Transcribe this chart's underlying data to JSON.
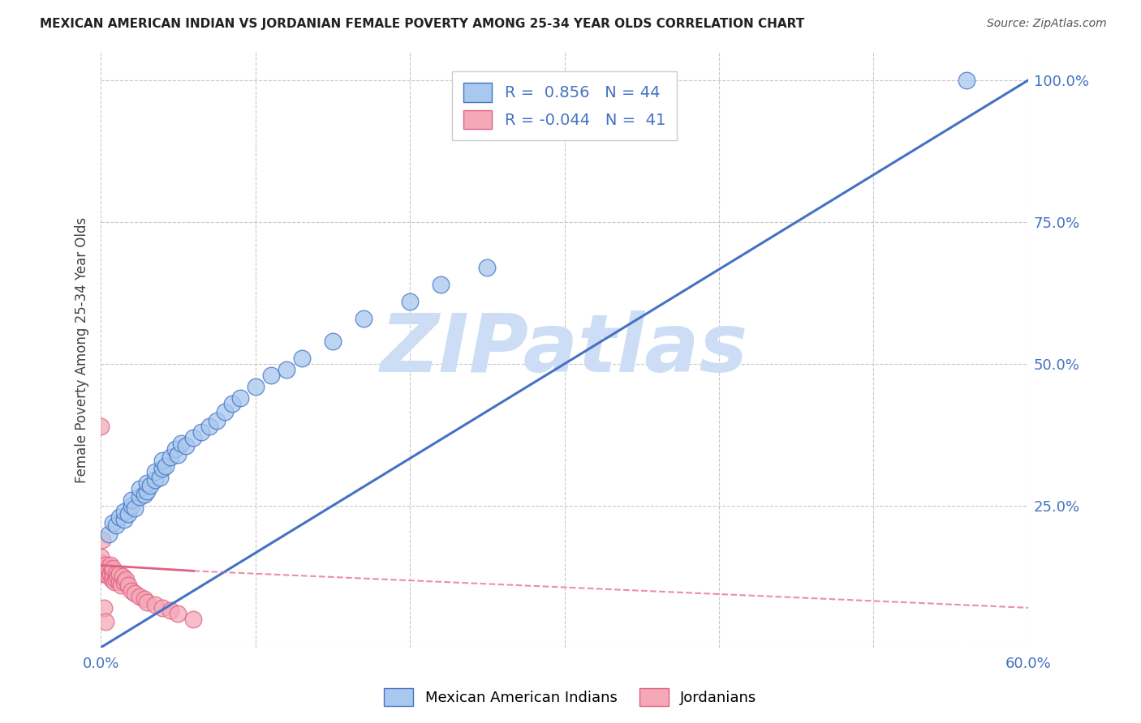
{
  "title": "MEXICAN AMERICAN INDIAN VS JORDANIAN FEMALE POVERTY AMONG 25-34 YEAR OLDS CORRELATION CHART",
  "source": "Source: ZipAtlas.com",
  "ylabel": "Female Poverty Among 25-34 Year Olds",
  "xlim": [
    0.0,
    0.6
  ],
  "ylim": [
    0.0,
    1.05
  ],
  "xticks": [
    0.0,
    0.1,
    0.2,
    0.3,
    0.4,
    0.5,
    0.6
  ],
  "xticklabels": [
    "0.0%",
    "",
    "",
    "",
    "",
    "",
    "60.0%"
  ],
  "yticks_right": [
    0.0,
    0.25,
    0.5,
    0.75,
    1.0
  ],
  "yticklabels_right": [
    "",
    "25.0%",
    "50.0%",
    "75.0%",
    "100.0%"
  ],
  "blue_R": 0.856,
  "blue_N": 44,
  "pink_R": -0.044,
  "pink_N": 41,
  "blue_color": "#A8C8EE",
  "pink_color": "#F4A8B8",
  "blue_line_color": "#4472C4",
  "pink_line_color": "#E06080",
  "watermark": "ZIPatlas",
  "watermark_color": "#CCDDF5",
  "legend_label_blue": "Mexican American Indians",
  "legend_label_pink": "Jordanians",
  "blue_scatter_x": [
    0.005,
    0.008,
    0.01,
    0.012,
    0.015,
    0.015,
    0.018,
    0.02,
    0.02,
    0.022,
    0.025,
    0.025,
    0.028,
    0.03,
    0.03,
    0.032,
    0.035,
    0.035,
    0.038,
    0.04,
    0.04,
    0.042,
    0.045,
    0.048,
    0.05,
    0.052,
    0.055,
    0.06,
    0.065,
    0.07,
    0.075,
    0.08,
    0.085,
    0.09,
    0.1,
    0.11,
    0.12,
    0.13,
    0.15,
    0.17,
    0.2,
    0.22,
    0.25,
    0.56
  ],
  "blue_scatter_y": [
    0.2,
    0.22,
    0.215,
    0.23,
    0.225,
    0.24,
    0.235,
    0.25,
    0.26,
    0.245,
    0.265,
    0.28,
    0.27,
    0.275,
    0.29,
    0.285,
    0.295,
    0.31,
    0.3,
    0.315,
    0.33,
    0.32,
    0.335,
    0.35,
    0.34,
    0.36,
    0.355,
    0.37,
    0.38,
    0.39,
    0.4,
    0.415,
    0.43,
    0.44,
    0.46,
    0.48,
    0.49,
    0.51,
    0.54,
    0.58,
    0.61,
    0.64,
    0.67,
    1.0
  ],
  "pink_scatter_x": [
    0.0,
    0.0,
    0.0,
    0.0,
    0.002,
    0.003,
    0.003,
    0.004,
    0.005,
    0.005,
    0.006,
    0.006,
    0.007,
    0.007,
    0.008,
    0.008,
    0.009,
    0.01,
    0.01,
    0.011,
    0.012,
    0.012,
    0.013,
    0.014,
    0.015,
    0.016,
    0.018,
    0.02,
    0.022,
    0.025,
    0.028,
    0.03,
    0.035,
    0.04,
    0.045,
    0.05,
    0.06,
    0.0,
    0.001,
    0.002,
    0.003
  ],
  "pink_scatter_y": [
    0.13,
    0.14,
    0.15,
    0.16,
    0.14,
    0.13,
    0.145,
    0.135,
    0.125,
    0.14,
    0.13,
    0.145,
    0.12,
    0.135,
    0.125,
    0.14,
    0.115,
    0.13,
    0.12,
    0.125,
    0.115,
    0.13,
    0.11,
    0.125,
    0.115,
    0.12,
    0.11,
    0.1,
    0.095,
    0.09,
    0.085,
    0.08,
    0.075,
    0.07,
    0.065,
    0.06,
    0.05,
    0.39,
    0.19,
    0.07,
    0.045
  ],
  "blue_line_x0": 0.0,
  "blue_line_y0": 0.0,
  "blue_line_x1": 0.6,
  "blue_line_y1": 1.0,
  "pink_line_x0": 0.0,
  "pink_line_y0": 0.145,
  "pink_line_x1": 0.06,
  "pink_line_y1": 0.135,
  "pink_line_x1_dash": 0.6,
  "pink_line_y1_dash": 0.07
}
